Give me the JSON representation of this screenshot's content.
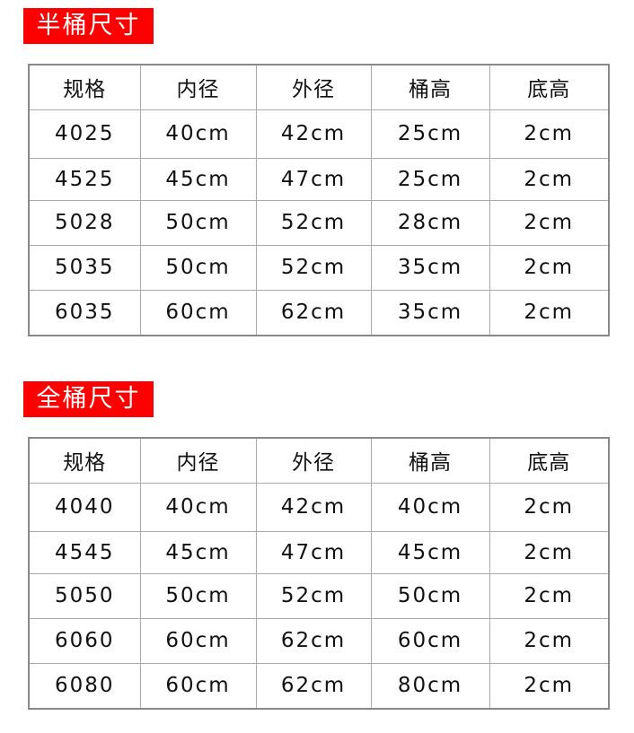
{
  "sections": [
    {
      "title": "半桶尺寸",
      "headers": [
        "规格",
        "内径",
        "外径",
        "桶高",
        "底高"
      ],
      "rows": [
        [
          "4025",
          "40cm",
          "42cm",
          "25cm",
          "2cm"
        ],
        [
          "4525",
          "45cm",
          "47cm",
          "25cm",
          "2cm"
        ],
        [
          "5028",
          "50cm",
          "52cm",
          "28cm",
          "2cm"
        ],
        [
          "5035",
          "50cm",
          "52cm",
          "35cm",
          "2cm"
        ],
        [
          "6035",
          "60cm",
          "62cm",
          "35cm",
          "2cm"
        ]
      ]
    },
    {
      "title": "全桶尺寸",
      "headers": [
        "规格",
        "内径",
        "外径",
        "桶高",
        "底高"
      ],
      "rows": [
        [
          "4040",
          "40cm",
          "42cm",
          "40cm",
          "2cm"
        ],
        [
          "4545",
          "45cm",
          "47cm",
          "45cm",
          "2cm"
        ],
        [
          "5050",
          "50cm",
          "52cm",
          "50cm",
          "2cm"
        ],
        [
          "6060",
          "60cm",
          "62cm",
          "60cm",
          "2cm"
        ],
        [
          "6080",
          "60cm",
          "62cm",
          "80cm",
          "2cm"
        ]
      ]
    }
  ],
  "colors": {
    "label_bg": "#fe0000"
  }
}
